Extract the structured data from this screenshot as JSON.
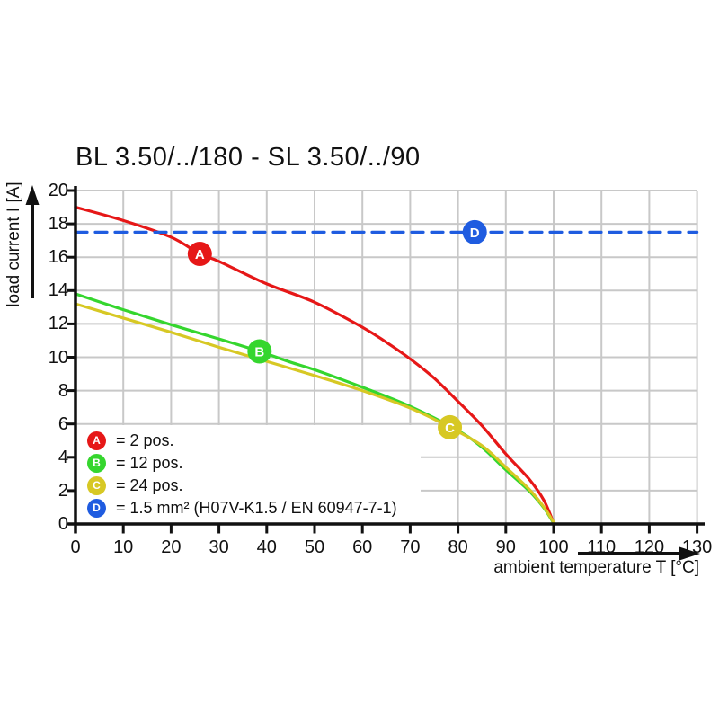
{
  "title": "BL 3.50/../180 - SL 3.50/../90",
  "chart_data": {
    "type": "line",
    "title": "BL 3.50/../180 - SL 3.50/../90",
    "xlabel": "ambient temperature T [°C]",
    "ylabel": "load current I [A]",
    "xlim": [
      0,
      130
    ],
    "ylim": [
      0,
      20
    ],
    "xticks": [
      0,
      10,
      20,
      30,
      40,
      50,
      60,
      70,
      80,
      90,
      100,
      110,
      120,
      130
    ],
    "yticks": [
      0,
      2,
      4,
      6,
      8,
      10,
      12,
      14,
      16,
      18,
      20
    ],
    "grid": true,
    "grid_color": "#c8c8c8",
    "axis_color": "#111111",
    "background": "#ffffff",
    "legend_position": "inside-bottom-left",
    "series": [
      {
        "id": "A",
        "label": "2 pos.",
        "color": "#e61717",
        "style": "solid",
        "points": [
          [
            0,
            19
          ],
          [
            10,
            18.2
          ],
          [
            20,
            17.2
          ],
          [
            26,
            16.2
          ],
          [
            30,
            15.75
          ],
          [
            40,
            14.4
          ],
          [
            50,
            13.3
          ],
          [
            60,
            11.8
          ],
          [
            65,
            10.9
          ],
          [
            70,
            9.9
          ],
          [
            75,
            8.75
          ],
          [
            80,
            7.35
          ],
          [
            85,
            5.9
          ],
          [
            90,
            4.2
          ],
          [
            95,
            2.65
          ],
          [
            98,
            1.4
          ],
          [
            100,
            0.05
          ]
        ],
        "marker": {
          "x": 26,
          "y": 16.2,
          "letter": "A"
        }
      },
      {
        "id": "B",
        "label": "12 pos.",
        "color": "#35d62e",
        "style": "solid",
        "points": [
          [
            0,
            13.8
          ],
          [
            10,
            12.85
          ],
          [
            20,
            11.95
          ],
          [
            30,
            11.1
          ],
          [
            38.5,
            10.35
          ],
          [
            45,
            9.7
          ],
          [
            50,
            9.25
          ],
          [
            60,
            8.2
          ],
          [
            70,
            7.05
          ],
          [
            80,
            5.6
          ],
          [
            85,
            4.6
          ],
          [
            90,
            3.25
          ],
          [
            95,
            1.95
          ],
          [
            98,
            0.95
          ],
          [
            100,
            0.05
          ]
        ],
        "marker": {
          "x": 38.5,
          "y": 10.35,
          "letter": "B"
        }
      },
      {
        "id": "C",
        "label": "24 pos.",
        "color": "#d7c824",
        "style": "solid",
        "points": [
          [
            0,
            13.2
          ],
          [
            10,
            12.35
          ],
          [
            20,
            11.5
          ],
          [
            30,
            10.6
          ],
          [
            40,
            9.75
          ],
          [
            50,
            8.9
          ],
          [
            60,
            8.0
          ],
          [
            70,
            6.95
          ],
          [
            78.3,
            5.8
          ],
          [
            85,
            4.7
          ],
          [
            90,
            3.4
          ],
          [
            95,
            2.05
          ],
          [
            98,
            1.0
          ],
          [
            100,
            0.1
          ]
        ],
        "marker": {
          "x": 78.3,
          "y": 5.8,
          "letter": "C"
        }
      },
      {
        "id": "D",
        "label": "1.5 mm² (H07V-K1.5 / EN 60947-7-1)",
        "color": "#1f5ce0",
        "style": "dashed",
        "value": 17.5,
        "points": [
          [
            0,
            17.5
          ],
          [
            130,
            17.5
          ]
        ],
        "marker": {
          "x": 83.5,
          "y": 17.5,
          "letter": "D"
        }
      }
    ],
    "legend": [
      {
        "letter": "A",
        "color": "#e61717",
        "text": "= 2 pos."
      },
      {
        "letter": "B",
        "color": "#35d62e",
        "text": "= 12 pos."
      },
      {
        "letter": "C",
        "color": "#d7c824",
        "text": "= 24 pos."
      },
      {
        "letter": "D",
        "color": "#1f5ce0",
        "text": "= 1.5 mm² (H07V-K1.5 / EN 60947-7-1)"
      }
    ]
  }
}
